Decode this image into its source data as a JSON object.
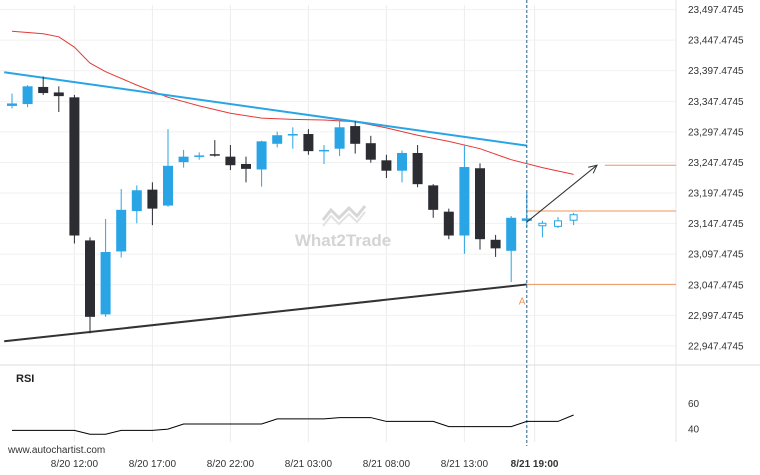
{
  "chart_data": {
    "type": "candlestick",
    "y_ticks": [
      "23,497.4745",
      "23,447.4745",
      "23,397.4745",
      "23,347.4745",
      "23,297.4745",
      "23,247.4745",
      "23,197.4745",
      "23,147.4745",
      "23,097.4745",
      "23,047.4745",
      "22,997.4745",
      "22,947.4745"
    ],
    "y_tick_values": [
      23497.4745,
      23447.4745,
      23397.4745,
      23347.4745,
      23297.4745,
      23247.4745,
      23197.4745,
      23147.4745,
      23097.4745,
      23047.4745,
      22997.4745,
      22947.4745
    ],
    "ylim": [
      22937.5,
      23505
    ],
    "x_ticks": [
      "8/20 12:00",
      "8/20 17:00",
      "8/20 22:00",
      "8/21 03:00",
      "8/21 08:00",
      "8/21 13:00",
      "8/21 19:00"
    ],
    "x_tick_index": [
      4,
      9,
      14,
      19,
      24,
      29,
      33.5
    ],
    "candles": [
      {
        "i": 0,
        "o": 23340,
        "h": 23360,
        "l": 23336,
        "c": 23344
      },
      {
        "i": 1,
        "o": 23343,
        "h": 23374,
        "l": 23338,
        "c": 23372
      },
      {
        "i": 2,
        "o": 23371,
        "h": 23388,
        "l": 23358,
        "c": 23361
      },
      {
        "i": 3,
        "o": 23362,
        "h": 23372,
        "l": 23330,
        "c": 23356
      },
      {
        "i": 4,
        "o": 23354,
        "h": 23358,
        "l": 23115,
        "c": 23128
      },
      {
        "i": 5,
        "o": 23120,
        "h": 23125,
        "l": 22968,
        "c": 22995
      },
      {
        "i": 6,
        "o": 22999,
        "h": 23155,
        "l": 22995,
        "c": 23101
      },
      {
        "i": 7,
        "o": 23102,
        "h": 23204,
        "l": 23092,
        "c": 23170
      },
      {
        "i": 8,
        "o": 23168,
        "h": 23210,
        "l": 23148,
        "c": 23202
      },
      {
        "i": 9,
        "o": 23203,
        "h": 23215,
        "l": 23145,
        "c": 23172
      },
      {
        "i": 10,
        "o": 23177,
        "h": 23302,
        "l": 23175,
        "c": 23242
      },
      {
        "i": 11,
        "o": 23248,
        "h": 23268,
        "l": 23239,
        "c": 23257
      },
      {
        "i": 12,
        "o": 23257,
        "h": 23264,
        "l": 23252,
        "c": 23259
      },
      {
        "i": 13,
        "o": 23261,
        "h": 23284,
        "l": 23257,
        "c": 23259
      },
      {
        "i": 14,
        "o": 23257,
        "h": 23276,
        "l": 23235,
        "c": 23243
      },
      {
        "i": 15,
        "o": 23245,
        "h": 23257,
        "l": 23215,
        "c": 23237
      },
      {
        "i": 16,
        "o": 23236,
        "h": 23283,
        "l": 23208,
        "c": 23282
      },
      {
        "i": 17,
        "o": 23278,
        "h": 23298,
        "l": 23272,
        "c": 23292
      },
      {
        "i": 18,
        "o": 23292,
        "h": 23305,
        "l": 23270,
        "c": 23294
      },
      {
        "i": 19,
        "o": 23294,
        "h": 23302,
        "l": 23260,
        "c": 23266
      },
      {
        "i": 20,
        "o": 23266,
        "h": 23276,
        "l": 23245,
        "c": 23268
      },
      {
        "i": 21,
        "o": 23270,
        "h": 23318,
        "l": 23258,
        "c": 23305
      },
      {
        "i": 22,
        "o": 23307,
        "h": 23315,
        "l": 23262,
        "c": 23278
      },
      {
        "i": 23,
        "o": 23279,
        "h": 23291,
        "l": 23247,
        "c": 23252
      },
      {
        "i": 24,
        "o": 23251,
        "h": 23260,
        "l": 23222,
        "c": 23234
      },
      {
        "i": 25,
        "o": 23234,
        "h": 23267,
        "l": 23215,
        "c": 23263
      },
      {
        "i": 26,
        "o": 23263,
        "h": 23276,
        "l": 23207,
        "c": 23212
      },
      {
        "i": 27,
        "o": 23210,
        "h": 23212,
        "l": 23157,
        "c": 23170
      },
      {
        "i": 28,
        "o": 23167,
        "h": 23172,
        "l": 23122,
        "c": 23128
      },
      {
        "i": 29,
        "o": 23128,
        "h": 23275,
        "l": 23098,
        "c": 23240
      },
      {
        "i": 30,
        "o": 23238,
        "h": 23246,
        "l": 23105,
        "c": 23122
      },
      {
        "i": 31,
        "o": 23121,
        "h": 23129,
        "l": 23093,
        "c": 23107
      },
      {
        "i": 32,
        "o": 23103,
        "h": 23160,
        "l": 23052,
        "c": 23157
      },
      {
        "i": 33,
        "o": 23152,
        "h": 23200,
        "l": 23142,
        "c": 23156
      },
      {
        "i": 34,
        "o": 23144,
        "h": 23152,
        "l": 23125,
        "c": 23148
      },
      {
        "i": 35,
        "o": 23143,
        "h": 23158,
        "l": 23140,
        "c": 23152
      },
      {
        "i": 36,
        "o": 23153,
        "h": 23165,
        "l": 23145,
        "c": 23162
      }
    ],
    "moving_average": [
      [
        0,
        23462
      ],
      [
        2,
        23458
      ],
      [
        3,
        23453
      ],
      [
        4,
        23436
      ],
      [
        5,
        23410
      ],
      [
        6,
        23396
      ],
      [
        8,
        23374
      ],
      [
        10,
        23354
      ],
      [
        12,
        23340
      ],
      [
        14,
        23328
      ],
      [
        16,
        23320
      ],
      [
        18,
        23318
      ],
      [
        20,
        23317
      ],
      [
        22,
        23314
      ],
      [
        24,
        23304
      ],
      [
        26,
        23292
      ],
      [
        28,
        23282
      ],
      [
        30,
        23270
      ],
      [
        32,
        23252
      ],
      [
        34,
        23239
      ],
      [
        36,
        23228
      ]
    ],
    "trend_lines": [
      {
        "name": "resistance",
        "points": [
          [
            -0.5,
            23395
          ],
          [
            33,
            23275
          ]
        ],
        "color": "#29a5e6"
      },
      {
        "name": "support",
        "points": [
          [
            -0.5,
            22955
          ],
          [
            33,
            23048
          ]
        ],
        "color": "#333333"
      }
    ],
    "levels": [
      {
        "value": 23048,
        "from": 33,
        "to": 48,
        "color": "#f0955a"
      },
      {
        "value": 23168,
        "from": 33,
        "to": 48,
        "color": "#f0955a"
      },
      {
        "value": 23243,
        "from": 38,
        "to": 48,
        "color": "#f0955a"
      }
    ],
    "forecast_arrow": [
      [
        33,
        23150
      ],
      [
        37.5,
        23243
      ]
    ],
    "point_label": {
      "text": "A",
      "index": 32.7,
      "value": 23035
    },
    "current_time_index": 33,
    "colors": {
      "up": "#29a5e6",
      "down": "#2b2d33",
      "ma": "#e53935",
      "level": "#f0955a",
      "vline": "#1f5f8b"
    }
  },
  "rsi": {
    "title": "RSI",
    "y_ticks": [
      "60",
      "40"
    ],
    "y_tick_values": [
      60,
      40
    ],
    "ylim": [
      30,
      72
    ],
    "values": [
      [
        0,
        39
      ],
      [
        1,
        39
      ],
      [
        2,
        39
      ],
      [
        3,
        39
      ],
      [
        4,
        39
      ],
      [
        5,
        36
      ],
      [
        6,
        36
      ],
      [
        7,
        39
      ],
      [
        8,
        39
      ],
      [
        9,
        39
      ],
      [
        10,
        40
      ],
      [
        11,
        44
      ],
      [
        12,
        44
      ],
      [
        13,
        44
      ],
      [
        14,
        44
      ],
      [
        15,
        44
      ],
      [
        16,
        44
      ],
      [
        17,
        48
      ],
      [
        18,
        48
      ],
      [
        19,
        48
      ],
      [
        20,
        48
      ],
      [
        21,
        49
      ],
      [
        22,
        49
      ],
      [
        23,
        49
      ],
      [
        24,
        46
      ],
      [
        25,
        46
      ],
      [
        26,
        46
      ],
      [
        27,
        46
      ],
      [
        28,
        42
      ],
      [
        29,
        42
      ],
      [
        30,
        42
      ],
      [
        31,
        42
      ],
      [
        32,
        42
      ],
      [
        33,
        46
      ],
      [
        34,
        46
      ],
      [
        35,
        46
      ],
      [
        36,
        51
      ]
    ],
    "color": "#000000"
  },
  "watermark": "What2Trade",
  "credit": "www.autochartist.com"
}
